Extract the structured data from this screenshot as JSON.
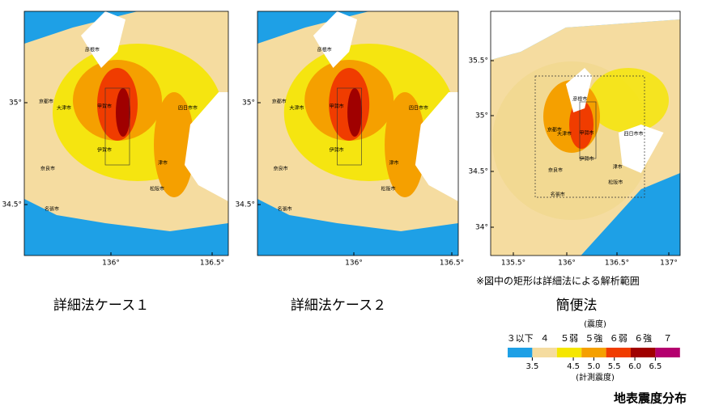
{
  "maps": [
    {
      "caption": "詳細法ケース１",
      "y_labels": [
        "35°",
        "34.5°"
      ],
      "x_labels": [
        "136°",
        "136.5°"
      ],
      "cities": [
        "彦根市",
        "京都市",
        "大津市",
        "甲賀市",
        "四日市市",
        "伊賀市",
        "奈良市",
        "名張市",
        "津市",
        "松阪市"
      ]
    },
    {
      "caption": "詳細法ケース２",
      "y_labels": [
        "35°",
        "34.5°"
      ],
      "x_labels": [
        "136°",
        "136.5°"
      ],
      "cities": [
        "彦根市",
        "京都市",
        "大津市",
        "甲賀市",
        "四日市市",
        "伊賀市",
        "奈良市",
        "名張市",
        "津市",
        "松阪市"
      ]
    },
    {
      "caption": "簡便法",
      "y_labels": [
        "35.5°",
        "35°",
        "34.5°",
        "34°"
      ],
      "x_labels": [
        "135.5°",
        "136°",
        "136.5°",
        "137°"
      ],
      "cities": [
        "彦根市",
        "京都市",
        "大津市",
        "甲賀市",
        "四日市市",
        "伊賀市",
        "奈良市",
        "名張市",
        "津市",
        "松阪市"
      ]
    }
  ],
  "note": "※図中の矩形は詳細法による解析範囲",
  "legend": {
    "title": "(震度)",
    "classes": [
      "３以下",
      "４",
      "５弱",
      "５強",
      "６弱",
      "６強",
      "７"
    ],
    "colors": [
      "#1ea0e6",
      "#f5dca0",
      "#f5e600",
      "#f5a000",
      "#f03c00",
      "#a00000",
      "#b4006e"
    ],
    "ticks": [
      3.5,
      4.5,
      {
        "value": 5,
        "label": "5.0"
      },
      5.5,
      {
        "value": 6,
        "label": "6.0"
      },
      6.5
    ],
    "subtitle": "(計測震度)"
  },
  "figure_title": "地表震度分布"
}
